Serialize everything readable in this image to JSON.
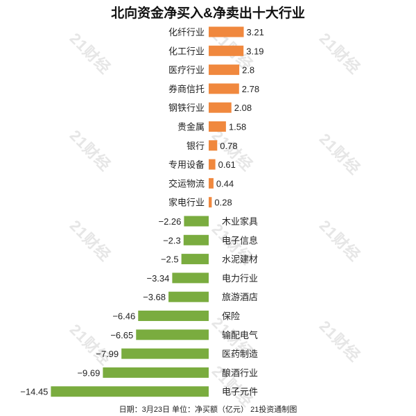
{
  "chart_data": {
    "type": "bar",
    "orientation": "horizontal",
    "title": "北向资金净买入&净卖出十大行业",
    "footer": "日期：3月23日 单位：净买额（亿元） 21投资通制图",
    "watermark": "21财经",
    "categories": [
      "化纤行业",
      "化工行业",
      "医疗行业",
      "券商信托",
      "钢铁行业",
      "贵金属",
      "银行",
      "专用设备",
      "交运物流",
      "家电行业",
      "木业家具",
      "电子信息",
      "水泥建材",
      "电力行业",
      "旅游酒店",
      "保险",
      "输配电气",
      "医药制造",
      "酿酒行业",
      "电子元件"
    ],
    "values": [
      3.21,
      3.19,
      2.8,
      2.78,
      2.08,
      1.58,
      0.78,
      0.61,
      0.44,
      0.28,
      -2.26,
      -2.3,
      -2.5,
      -3.34,
      -3.68,
      -6.46,
      -6.65,
      -7.99,
      -9.69,
      -14.45
    ],
    "value_labels": [
      "3.21",
      "3.19",
      "2.8",
      "2.78",
      "2.08",
      "1.58",
      "0.78",
      "0.61",
      "0.44",
      "0.28",
      "−2.26",
      "−2.3",
      "−2.5",
      "−3.34",
      "−3.68",
      "−6.46",
      "−6.65",
      "−7.99",
      "−9.69",
      "−14.45"
    ],
    "colors": {
      "positive": "#f0883e",
      "negative": "#7aac3f"
    }
  }
}
